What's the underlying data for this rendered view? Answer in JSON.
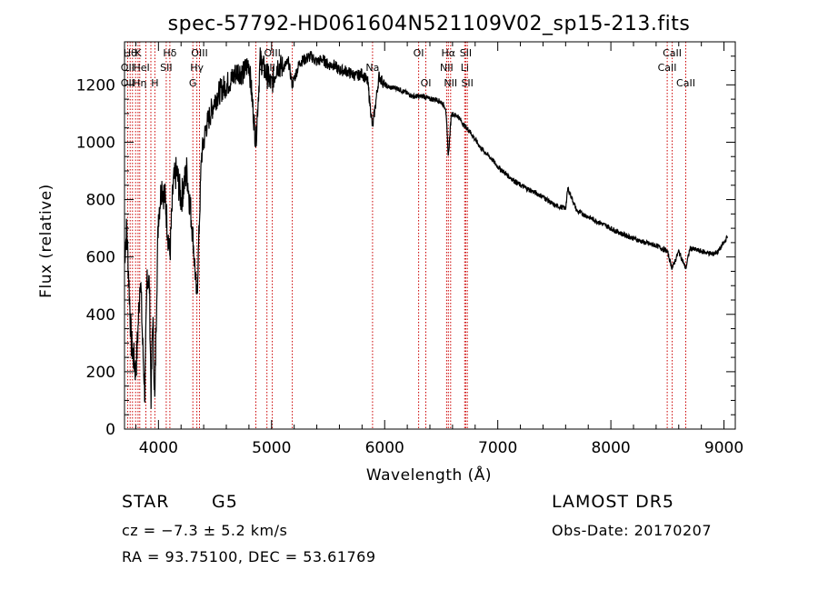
{
  "chart_data": {
    "type": "line",
    "title": "spec-57792-HD061604N521109V02_sp15-213.fits",
    "xlabel": "Wavelength (Å)",
    "ylabel": "Flux (relative)",
    "xlim": [
      3700,
      9100
    ],
    "ylim": [
      0,
      1350
    ],
    "xticks": [
      4000,
      5000,
      6000,
      7000,
      8000,
      9000
    ],
    "yticks": [
      0,
      200,
      400,
      600,
      800,
      1000,
      1200
    ],
    "grid": false,
    "line_color": "#000000",
    "marker_color": "#cc0000",
    "series": [
      {
        "x": [
          3700,
          3720,
          3740,
          3760,
          3780,
          3800,
          3820,
          3840,
          3860,
          3880,
          3900,
          3920,
          3935,
          3950,
          3968,
          3985,
          4000,
          4030,
          4060,
          4101,
          4130,
          4160,
          4200,
          4250,
          4300,
          4340,
          4380,
          4420,
          4460,
          4500,
          4550,
          4600,
          4650,
          4700,
          4750,
          4800,
          4861,
          4900,
          4950,
          5000,
          5050,
          5100,
          5150,
          5183,
          5250,
          5300,
          5350,
          5400,
          5450,
          5500,
          5550,
          5600,
          5650,
          5700,
          5750,
          5800,
          5850,
          5893,
          5950,
          6000,
          6050,
          6100,
          6150,
          6200,
          6250,
          6300,
          6350,
          6400,
          6450,
          6500,
          6540,
          6563,
          6590,
          6650,
          6700,
          6750,
          6800,
          6850,
          6900,
          6950,
          7000,
          7100,
          7200,
          7300,
          7400,
          7500,
          7600,
          7620,
          7700,
          7800,
          7900,
          8000,
          8100,
          8200,
          8300,
          8400,
          8498,
          8542,
          8600,
          8662,
          8700,
          8800,
          8900,
          8950,
          9000,
          9030
        ],
        "y": [
          600,
          700,
          500,
          300,
          250,
          200,
          350,
          550,
          300,
          120,
          550,
          500,
          120,
          400,
          80,
          500,
          750,
          850,
          800,
          600,
          850,
          900,
          800,
          900,
          700,
          450,
          950,
          1050,
          1100,
          1150,
          1180,
          1200,
          1220,
          1250,
          1240,
          1280,
          1000,
          1290,
          1240,
          1200,
          1270,
          1260,
          1280,
          1200,
          1280,
          1290,
          1300,
          1280,
          1290,
          1270,
          1270,
          1250,
          1250,
          1240,
          1230,
          1240,
          1210,
          1050,
          1230,
          1200,
          1190,
          1190,
          1180,
          1170,
          1160,
          1160,
          1160,
          1150,
          1150,
          1140,
          1120,
          950,
          1100,
          1090,
          1060,
          1040,
          1010,
          980,
          960,
          940,
          915,
          880,
          850,
          830,
          810,
          780,
          770,
          840,
          760,
          740,
          720,
          700,
          680,
          665,
          650,
          640,
          620,
          560,
          620,
          560,
          630,
          620,
          610,
          620,
          650,
          670
        ]
      }
    ],
    "annotations": [
      {
        "wavelength": 3750,
        "label": "Hθ",
        "row": 1
      },
      {
        "wavelength": 3727,
        "label": "OII",
        "row": 2
      },
      {
        "wavelength": 3727,
        "label": "OII",
        "row": 3
      },
      {
        "wavelength": 3820,
        "label": "K",
        "row": 1
      },
      {
        "wavelength": 3850,
        "label": "HeI",
        "row": 2
      },
      {
        "wavelength": 3835,
        "label": "Hη",
        "row": 3
      },
      {
        "wavelength": 4101,
        "label": "Hδ",
        "row": 1
      },
      {
        "wavelength": 4069,
        "label": "SII",
        "row": 2
      },
      {
        "wavelength": 3968,
        "label": "H",
        "row": 3
      },
      {
        "wavelength": 4363,
        "label": "OIII",
        "row": 1
      },
      {
        "wavelength": 4340,
        "label": "Hγ",
        "row": 2
      },
      {
        "wavelength": 4304,
        "label": "G",
        "row": 3
      },
      {
        "wavelength": 5007,
        "label": "OIII",
        "row": 1
      },
      {
        "wavelength": 4959,
        "label": "OIII",
        "row": 2
      },
      {
        "wavelength": 5893,
        "label": "Na",
        "row": 2
      },
      {
        "wavelength": 6300,
        "label": "OI",
        "row": 1
      },
      {
        "wavelength": 6364,
        "label": "OI",
        "row": 3
      },
      {
        "wavelength": 6563,
        "label": "Hα",
        "row": 1
      },
      {
        "wavelength": 6548,
        "label": "NII",
        "row": 2
      },
      {
        "wavelength": 6583,
        "label": "NII",
        "row": 3
      },
      {
        "wavelength": 6717,
        "label": "SII",
        "row": 1
      },
      {
        "wavelength": 6708,
        "label": "Li",
        "row": 2
      },
      {
        "wavelength": 6731,
        "label": "SII",
        "row": 3
      },
      {
        "wavelength": 8542,
        "label": "CaII",
        "row": 1
      },
      {
        "wavelength": 8498,
        "label": "CaII",
        "row": 2
      },
      {
        "wavelength": 8662,
        "label": "CaII",
        "row": 3
      }
    ],
    "marker_lines": [
      3727,
      3750,
      3771,
      3798,
      3820,
      3835,
      3889,
      3933,
      3968,
      4069,
      4101,
      4304,
      4340,
      4363,
      4861,
      4959,
      5007,
      5183,
      5893,
      6300,
      6364,
      6548,
      6563,
      6583,
      6708,
      6717,
      6731,
      8498,
      8542,
      8662
    ]
  },
  "info": {
    "object_class": "STAR",
    "subclass": "G5",
    "survey": "LAMOST DR5",
    "cz": "cz = −7.3 ± 5.2 km/s",
    "obs_date": "Obs-Date: 20170207",
    "coords": "RA =  93.75100, DEC =  53.61769"
  }
}
